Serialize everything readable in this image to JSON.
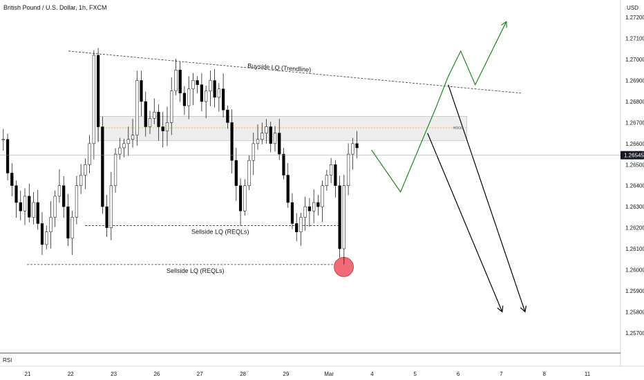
{
  "header": {
    "title": "British Pound / U.S. Dollar, 1h, FXCM",
    "currency": "USD"
  },
  "price_axis": {
    "ticks": [
      "1.27200",
      "1.27100",
      "1.27000",
      "1.26900",
      "1.26800",
      "1.26700",
      "1.26600",
      "1.26500",
      "1.26400",
      "1.26300",
      "1.26200",
      "1.26100",
      "1.26000",
      "1.25900",
      "1.25800",
      "1.25700"
    ],
    "current_price_label": "1.26545"
  },
  "time_axis": {
    "ticks": [
      "21",
      "22",
      "23",
      "26",
      "27",
      "28",
      "29",
      "Mar",
      "4",
      "5",
      "6",
      "7",
      "8",
      "11"
    ]
  },
  "indicator_pane": {
    "label": "RSI"
  },
  "zone": {
    "label": "HDOG"
  },
  "annotations": {
    "buyside": "Buyside LQ (Trendline)",
    "sellside_upper": "Sellside LQ (REQLs)",
    "sellside_lower": "Sellside LQ (REQLs)"
  },
  "colors": {
    "bull": "#ffffff",
    "bear": "#000000",
    "outline": "#000000",
    "projection_up": "#1a8a1a",
    "projection_down": "#000000",
    "zone_fill": "#e8e8e8",
    "zone_mid": "#f5a623",
    "circle": "#f06a7a",
    "price_badge": "#131722"
  },
  "chart_data": {
    "type": "candlestick",
    "title": "British Pound / U.S. Dollar, 1h, FXCM",
    "ylabel": "USD",
    "ylim": [
      1.2565,
      1.2725
    ],
    "current_price": 1.26545,
    "grid": false,
    "x_ticks": [
      "21",
      "22",
      "23",
      "26",
      "27",
      "28",
      "29",
      "Mar",
      "4",
      "5",
      "6",
      "7",
      "8",
      "11"
    ],
    "price_path": [
      1.2662,
      1.2646,
      1.264,
      1.2632,
      1.2628,
      1.2635,
      1.2625,
      1.2632,
      1.2622,
      1.2612,
      1.2618,
      1.2625,
      1.2635,
      1.264,
      1.263,
      1.2615,
      1.2625,
      1.264,
      1.2645,
      1.265,
      1.266,
      1.2702,
      1.2668,
      1.263,
      1.262,
      1.264,
      1.2655,
      1.2658,
      1.266,
      1.2662,
      1.2664,
      1.269,
      1.268,
      1.2668,
      1.2672,
      1.2675,
      1.2668,
      1.2666,
      1.267,
      1.2685,
      1.2695,
      1.2684,
      1.2678,
      1.2686,
      1.269,
      1.2688,
      1.268,
      1.2685,
      1.269,
      1.2682,
      1.2686,
      1.2676,
      1.267,
      1.2652,
      1.264,
      1.2628,
      1.264,
      1.2652,
      1.266,
      1.2662,
      1.2665,
      1.2668,
      1.266,
      1.2665,
      1.2655,
      1.2645,
      1.2632,
      1.2622,
      1.2618,
      1.2625,
      1.263,
      1.2628,
      1.2632,
      1.263,
      1.264,
      1.2645,
      1.265,
      1.264,
      1.261,
      1.264,
      1.2655,
      1.266,
      1.2658
    ],
    "series": [
      {
        "name": "",
        "kind": "projection",
        "color": "up",
        "points": [
          [
            0.7,
            1.2657
          ],
          [
            1.4,
            1.2637
          ],
          [
            2.25,
            1.2677
          ],
          [
            2.55,
            1.2692
          ],
          [
            2.85,
            1.2704
          ],
          [
            3.2,
            1.2688
          ],
          [
            3.95,
            1.2718
          ]
        ]
      },
      {
        "name": "",
        "kind": "projection",
        "color": "down",
        "points": [
          [
            2.55,
            1.2688
          ],
          [
            4.4,
            1.258
          ]
        ]
      },
      {
        "name": "",
        "kind": "projection",
        "color": "down",
        "points": [
          [
            2.05,
            1.2665
          ],
          [
            3.85,
            1.258
          ]
        ]
      }
    ],
    "levels": {
      "trendline": {
        "from": [
          -6.6,
          1.2704
        ],
        "to": [
          4.3,
          1.2684
        ]
      },
      "sellside_upper": {
        "price": 1.2621,
        "from": -6.2,
        "to": -0.1
      },
      "sellside_lower": {
        "price": 1.26025,
        "from": -7.6,
        "to": -0.1
      },
      "zone": {
        "top": 1.2673,
        "bottom": 1.26615,
        "mid": 1.26675,
        "from": -5.9,
        "to": 3.0
      },
      "circle": {
        "x": 0.0,
        "price": 1.2602
      }
    },
    "x_range": [
      -8.25,
      6.7
    ]
  }
}
